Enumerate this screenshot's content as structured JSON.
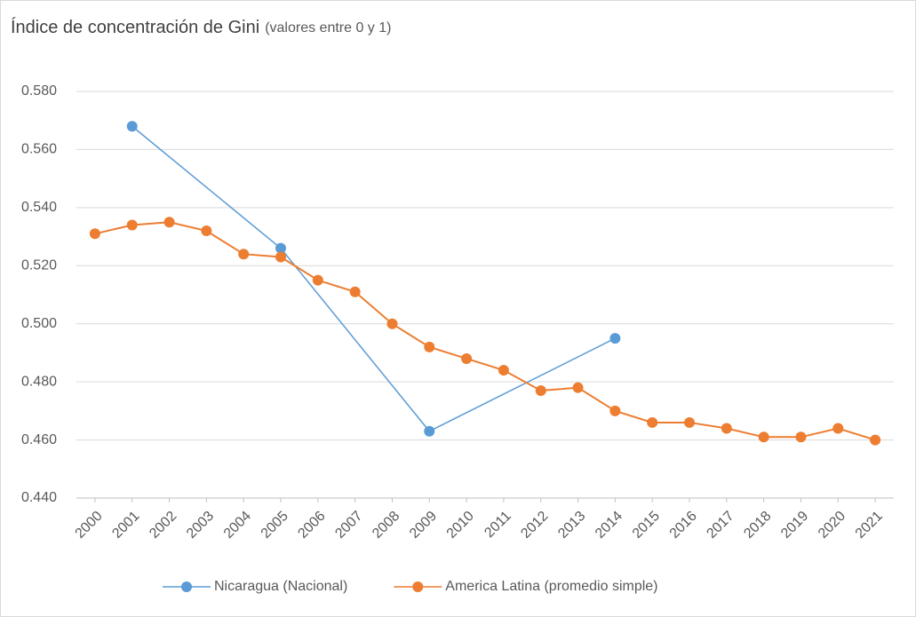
{
  "chart_data": {
    "type": "line",
    "title": "Índice de concentración de Gini",
    "subtitle": "(valores entre 0 y 1)",
    "xlim": [
      1999.5,
      2021.5
    ],
    "xticks": [
      2000,
      2001,
      2002,
      2003,
      2004,
      2005,
      2006,
      2007,
      2008,
      2009,
      2010,
      2011,
      2012,
      2013,
      2014,
      2015,
      2016,
      2017,
      2018,
      2019,
      2020,
      2021
    ],
    "ylim": [
      0.44,
      0.58
    ],
    "yticks": [
      {
        "value": 0.44,
        "label": "0.440"
      },
      {
        "value": 0.46,
        "label": "0.460"
      },
      {
        "value": 0.48,
        "label": "0.480"
      },
      {
        "value": 0.5,
        "label": "0.500"
      },
      {
        "value": 0.52,
        "label": "0.520"
      },
      {
        "value": 0.54,
        "label": "0.540"
      },
      {
        "value": 0.56,
        "label": "0.560"
      },
      {
        "value": 0.58,
        "label": "0.580"
      }
    ],
    "grid": true,
    "legend": "bottom",
    "series": [
      {
        "name": "Nicaragua (Nacional)",
        "color": "#5b9bd5",
        "x": [
          2001,
          2005,
          2009,
          2014
        ],
        "values": [
          0.568,
          0.526,
          0.463,
          0.495
        ]
      },
      {
        "name": "America Latina (promedio simple)",
        "color": "#ed7d31",
        "x": [
          2000,
          2001,
          2002,
          2003,
          2004,
          2005,
          2006,
          2007,
          2008,
          2009,
          2010,
          2011,
          2012,
          2013,
          2014,
          2015,
          2016,
          2017,
          2018,
          2019,
          2020,
          2021
        ],
        "values": [
          0.531,
          0.534,
          0.535,
          0.532,
          0.524,
          0.523,
          0.515,
          0.511,
          0.5,
          0.492,
          0.488,
          0.484,
          0.477,
          0.478,
          0.47,
          0.466,
          0.466,
          0.464,
          0.461,
          0.461,
          0.464,
          0.46
        ]
      }
    ]
  }
}
